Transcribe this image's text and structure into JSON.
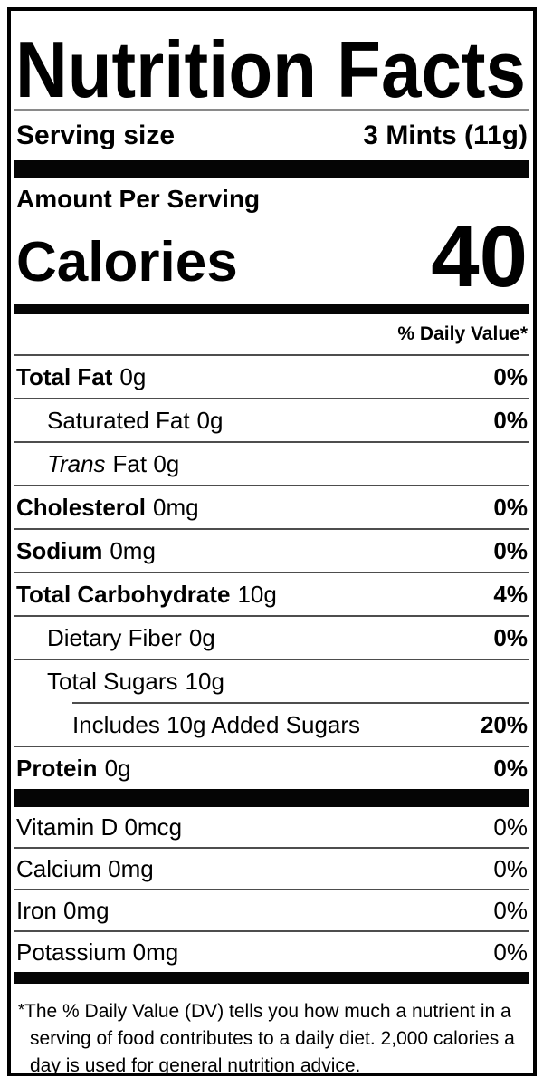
{
  "label": {
    "title": "Nutrition Facts",
    "serving_row": {
      "label": "Serving size",
      "value": "3 Mints (11g)"
    },
    "amount_per_serving_label": "Amount Per Serving",
    "calories_row": {
      "label": "Calories",
      "value": "40"
    },
    "daily_value_header": "% Daily Value*",
    "nutrient_rows": [
      {
        "name": "Total Fat",
        "amount": "0g",
        "dv": "0%"
      },
      {
        "name": "Saturated Fat",
        "amount": "0g",
        "dv": "0%"
      },
      {
        "name_italic": "Trans",
        "amount": "Fat 0g",
        "dv": ""
      },
      {
        "name": "Cholesterol",
        "amount": "0mg",
        "dv": "0%"
      },
      {
        "name": "Sodium",
        "amount": "0mg",
        "dv": "0%"
      },
      {
        "name": "Total Carbohydrate",
        "amount": "10g",
        "dv": "4%"
      },
      {
        "name": "Dietary Fiber",
        "amount": "0g",
        "dv": "0%"
      },
      {
        "name": "Total Sugars",
        "amount": "10g",
        "dv": ""
      },
      {
        "name": "Includes 10g Added Sugars",
        "amount": "",
        "dv": "20%"
      },
      {
        "name": "Protein",
        "amount": "0g",
        "dv": "0%"
      }
    ],
    "micronutrient_rows": [
      {
        "name": "Vitamin D 0mcg",
        "dv": "0%"
      },
      {
        "name": "Calcium 0mg",
        "dv": "0%"
      },
      {
        "name": "Iron 0mg",
        "dv": "0%"
      },
      {
        "name": "Potassium 0mg",
        "dv": "0%"
      }
    ],
    "footnote": {
      "marker": "*",
      "text": "The % Daily Value (DV) tells you how much a nutrient in a serving of food contributes to a daily diet. 2,000 calories a day is used for general nutrition advice."
    },
    "colors": {
      "ink": "#000000",
      "paper": "#ffffff",
      "divider": "#4d4d4d"
    }
  }
}
